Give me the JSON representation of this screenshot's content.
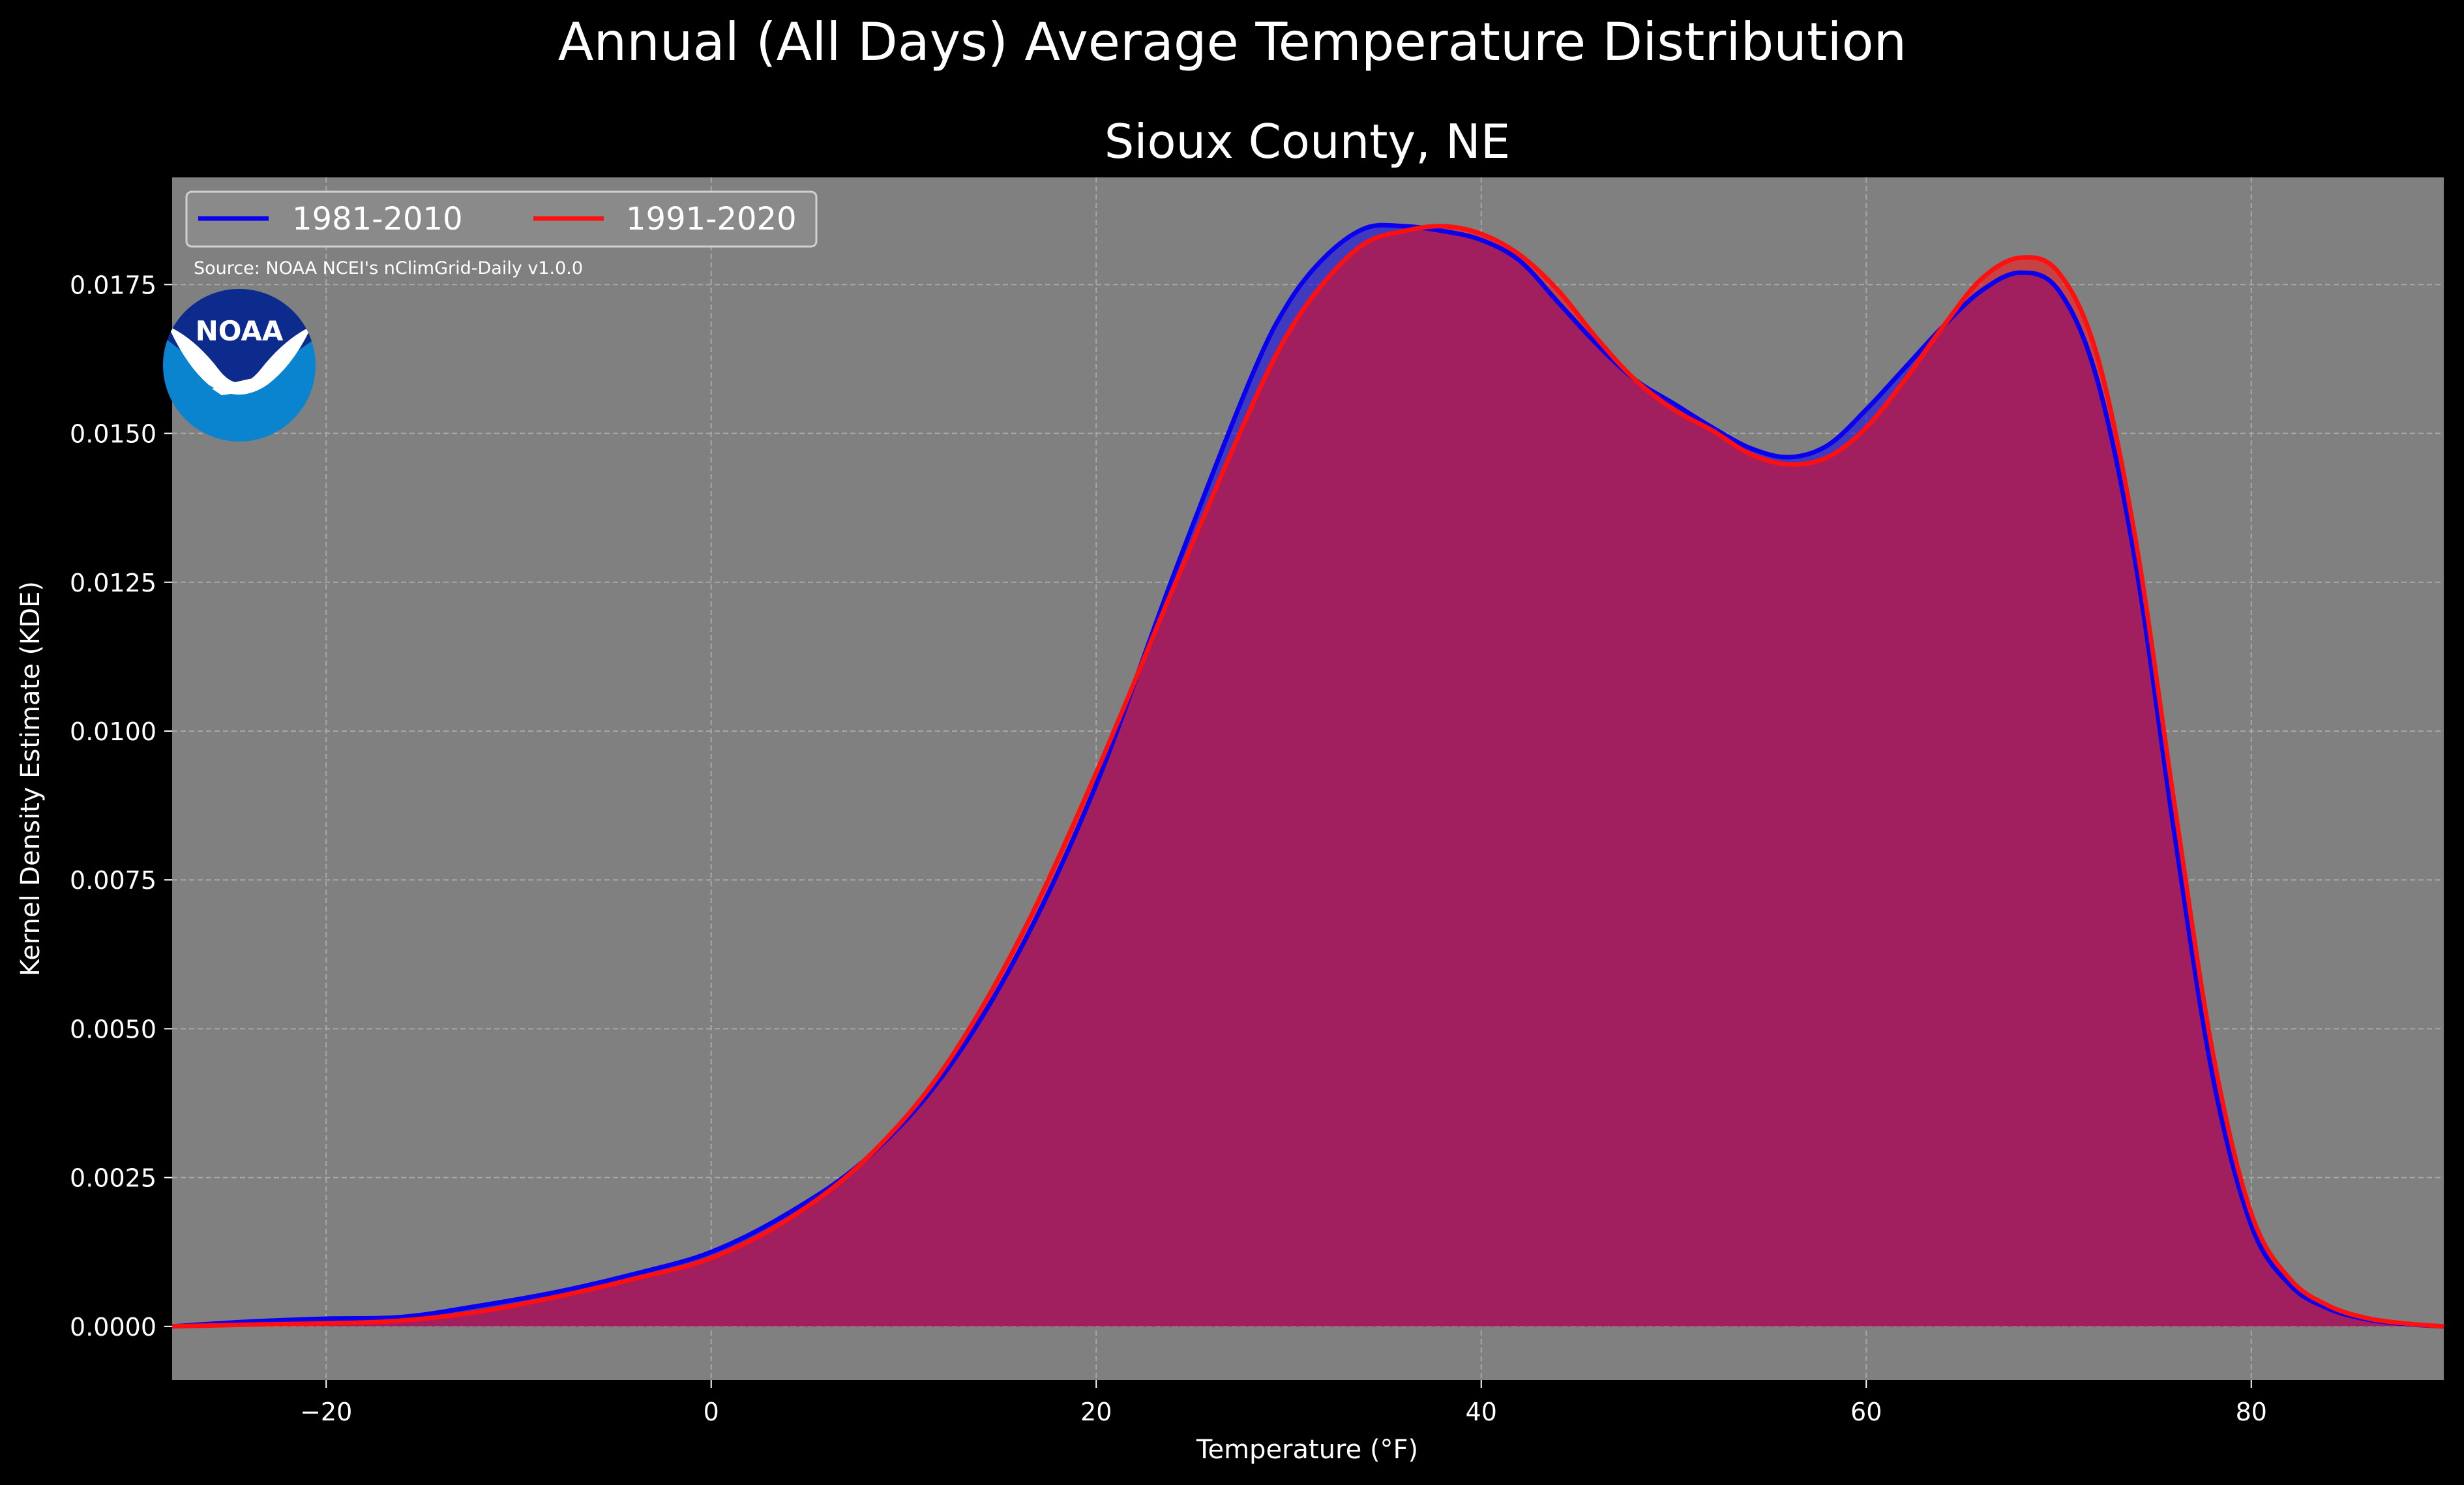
{
  "chart_data": {
    "type": "area",
    "suptitle": "Annual (All Days) Average Temperature Distribution",
    "title": "Sioux County, NE",
    "xlabel": "Temperature (°F)",
    "ylabel": "Kernel Density Estimate (KDE)",
    "xlim": [
      -28,
      90
    ],
    "ylim": [
      -0.0009,
      0.0193
    ],
    "xticks": [
      -20,
      0,
      20,
      40,
      60,
      80
    ],
    "xtick_labels": [
      "−20",
      "0",
      "20",
      "40",
      "60",
      "80"
    ],
    "yticks": [
      0,
      0.0025,
      0.005,
      0.0075,
      0.01,
      0.0125,
      0.015,
      0.0175
    ],
    "ytick_labels": [
      "0.0000",
      "0.0025",
      "0.0050",
      "0.0075",
      "0.0100",
      "0.0125",
      "0.0150",
      "0.0175"
    ],
    "grid": true,
    "legend_position": "top-left",
    "source": "Source: NOAA NCEI's nClimGrid-Daily v1.0.0",
    "logo_text": "NOAA",
    "colors": {
      "background": "#000000",
      "axes_face": "#808080",
      "fill": "#a01e5f",
      "series_1981": "#0a00f0",
      "series_1991": "#ff1010",
      "logo_dark": "#0d2b8c",
      "logo_light": "#0a84cf"
    },
    "x": [
      -28,
      -24,
      -20,
      -16,
      -12,
      -8,
      -4,
      0,
      4,
      8,
      12,
      16,
      20,
      24,
      28,
      30,
      32,
      34,
      36,
      38,
      40,
      42,
      44,
      46,
      48,
      50,
      52,
      54,
      56,
      58,
      60,
      62,
      64,
      66,
      68,
      70,
      72,
      74,
      76,
      78,
      80,
      82,
      84,
      86,
      88,
      90
    ],
    "series": [
      {
        "name": "1981-2010",
        "values": [
          0.0,
          8e-05,
          0.00013,
          0.00016,
          0.00035,
          0.00058,
          0.00088,
          0.00125,
          0.0019,
          0.0028,
          0.0042,
          0.0063,
          0.0091,
          0.0126,
          0.0159,
          0.0172,
          0.018,
          0.01845,
          0.01848,
          0.0184,
          0.01825,
          0.0179,
          0.0172,
          0.0165,
          0.0159,
          0.0155,
          0.0151,
          0.01475,
          0.0146,
          0.0148,
          0.0154,
          0.0161,
          0.0168,
          0.0174,
          0.0177,
          0.0174,
          0.0159,
          0.0128,
          0.0083,
          0.0042,
          0.0017,
          0.0007,
          0.0003,
          0.00012,
          4e-05,
          0.0
        ]
      },
      {
        "name": "1991-2020",
        "values": [
          0.0,
          3e-05,
          5e-05,
          0.0001,
          0.00025,
          0.0005,
          0.0008,
          0.00115,
          0.0018,
          0.0028,
          0.0043,
          0.0065,
          0.0093,
          0.0124,
          0.0154,
          0.0167,
          0.0176,
          0.0182,
          0.0184,
          0.01848,
          0.01835,
          0.018,
          0.0174,
          0.0166,
          0.0159,
          0.0154,
          0.01505,
          0.01465,
          0.01448,
          0.0146,
          0.0151,
          0.0159,
          0.0168,
          0.0176,
          0.01795,
          0.0177,
          0.0163,
          0.0132,
          0.0088,
          0.0046,
          0.0019,
          0.0008,
          0.00035,
          0.00014,
          5e-05,
          0.0
        ]
      }
    ]
  }
}
